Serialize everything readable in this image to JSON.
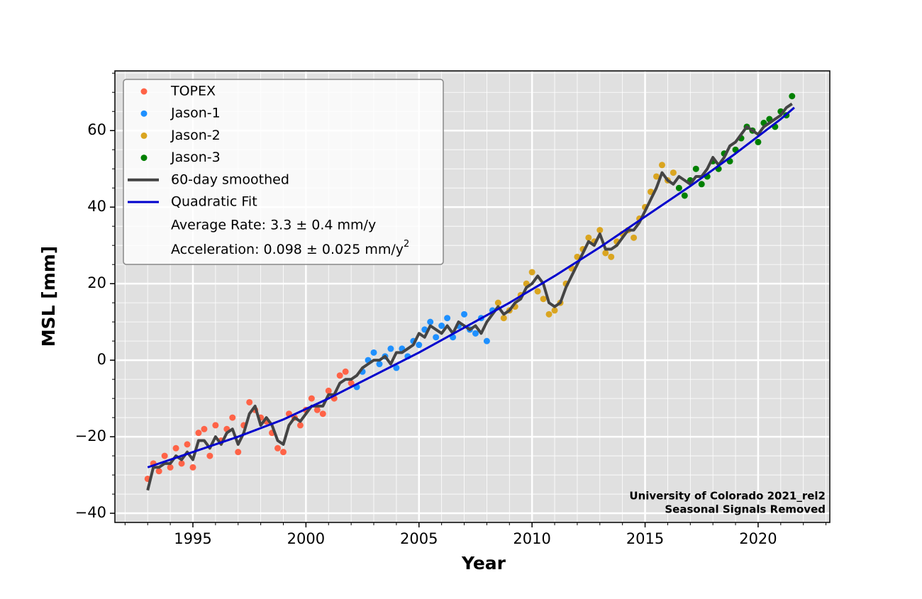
{
  "chart_data": {
    "type": "scatter",
    "xlabel": "Year",
    "ylabel": "MSL [mm]",
    "xlim": [
      1991.55,
      2023.17
    ],
    "ylim": [
      -42.4,
      75.6
    ],
    "xticks": [
      1995,
      2000,
      2005,
      2010,
      2015,
      2020
    ],
    "yticks": [
      {
        "value": -40,
        "label": "−40"
      },
      {
        "value": -20,
        "label": "−20"
      },
      0,
      20,
      40,
      60
    ],
    "xminor": [
      1992,
      1993,
      1994,
      1995,
      1996,
      1997,
      1998,
      1999,
      2000,
      2001,
      2002,
      2003,
      2004,
      2005,
      2006,
      2007,
      2008,
      2009,
      2010,
      2011,
      2012,
      2013,
      2014,
      2015,
      2016,
      2017,
      2018,
      2019,
      2020,
      2021,
      2022,
      2023
    ],
    "yminor": [
      -40,
      -35,
      -30,
      -25,
      -20,
      -15,
      -10,
      -5,
      0,
      5,
      10,
      15,
      20,
      25,
      30,
      35,
      40,
      45,
      50,
      55,
      60,
      65,
      70,
      75
    ],
    "grid": true,
    "legend": "upper left",
    "rate_note": "Average Rate: 3.3 ± 0.4 mm/y",
    "acceleration_note": {
      "text": "Acceleration: 0.098 ± 0.025 mm/y",
      "superscript": "2"
    },
    "credits": [
      "University of Colorado 2021_rel2",
      "Seasonal Signals Removed"
    ],
    "series": [
      {
        "name": "TOPEX",
        "type": "scatter",
        "color": "#ff6347",
        "x": [
          1993.0,
          1993.25,
          1993.5,
          1993.75,
          1994.0,
          1994.25,
          1994.5,
          1994.75,
          1995.0,
          1995.25,
          1995.5,
          1995.75,
          1996.0,
          1996.25,
          1996.5,
          1996.75,
          1997.0,
          1997.25,
          1997.5,
          1997.75,
          1998.0,
          1998.25,
          1998.5,
          1998.75,
          1999.0,
          1999.25,
          1999.5,
          1999.75,
          2000.0,
          2000.25,
          2000.5,
          2000.75,
          2001.0,
          2001.25,
          2001.5,
          2001.75,
          2002.0
        ],
        "values": [
          -31,
          -27,
          -29,
          -25,
          -28,
          -23,
          -27,
          -22,
          -28,
          -19,
          -18,
          -25,
          -17,
          -21,
          -18,
          -15,
          -24,
          -17,
          -11,
          -13,
          -15,
          -16,
          -19,
          -23,
          -24,
          -14,
          -15,
          -17,
          -13,
          -10,
          -13,
          -14,
          -8,
          -10,
          -4,
          -3,
          -6
        ]
      },
      {
        "name": "Jason-1",
        "type": "scatter",
        "color": "#1e90ff",
        "x": [
          2002.25,
          2002.5,
          2002.75,
          2003.0,
          2003.25,
          2003.5,
          2003.75,
          2004.0,
          2004.25,
          2004.5,
          2004.75,
          2005.0,
          2005.25,
          2005.5,
          2005.75,
          2006.0,
          2006.25,
          2006.5,
          2006.75,
          2007.0,
          2007.25,
          2007.5,
          2007.75,
          2008.0,
          2008.25
        ],
        "values": [
          -7,
          -3,
          0,
          2,
          -1,
          1,
          3,
          -2,
          3,
          1,
          5,
          4,
          8,
          10,
          6,
          9,
          11,
          6,
          9,
          12,
          8,
          7,
          11,
          5,
          13
        ]
      },
      {
        "name": "Jason-2",
        "type": "scatter",
        "color": "#daa520",
        "x": [
          2008.5,
          2008.75,
          2009.0,
          2009.25,
          2009.5,
          2009.75,
          2010.0,
          2010.25,
          2010.5,
          2010.75,
          2011.0,
          2011.25,
          2011.5,
          2011.75,
          2012.0,
          2012.25,
          2012.5,
          2012.75,
          2013.0,
          2013.25,
          2013.5,
          2013.75,
          2014.0,
          2014.25,
          2014.5,
          2014.75,
          2015.0,
          2015.25,
          2015.5,
          2015.75,
          2016.0,
          2016.25
        ],
        "values": [
          15,
          11,
          13,
          14,
          17,
          20,
          23,
          18,
          16,
          12,
          13,
          15,
          20,
          24,
          27,
          29,
          32,
          31,
          34,
          28,
          27,
          31,
          33,
          34,
          32,
          37,
          40,
          44,
          48,
          51,
          47,
          49
        ]
      },
      {
        "name": "Jason-3",
        "type": "scatter",
        "color": "#008000",
        "x": [
          2016.5,
          2016.75,
          2017.0,
          2017.25,
          2017.5,
          2017.75,
          2018.0,
          2018.25,
          2018.5,
          2018.75,
          2019.0,
          2019.25,
          2019.5,
          2019.75,
          2020.0,
          2020.25,
          2020.5,
          2020.75,
          2021.0,
          2021.25,
          2021.5
        ],
        "values": [
          45,
          43,
          47,
          50,
          46,
          48,
          52,
          50,
          54,
          52,
          55,
          58,
          61,
          60,
          57,
          62,
          63,
          61,
          65,
          64,
          69
        ]
      },
      {
        "name": "60-day smoothed",
        "type": "line",
        "color": "#444444",
        "x": [
          1993.0,
          1993.25,
          1993.5,
          1993.75,
          1994.0,
          1994.25,
          1994.5,
          1994.75,
          1995.0,
          1995.25,
          1995.5,
          1995.75,
          1996.0,
          1996.25,
          1996.5,
          1996.75,
          1997.0,
          1997.25,
          1997.5,
          1997.75,
          1998.0,
          1998.25,
          1998.5,
          1998.75,
          1999.0,
          1999.25,
          1999.5,
          1999.75,
          2000.0,
          2000.25,
          2000.5,
          2000.75,
          2001.0,
          2001.25,
          2001.5,
          2001.75,
          2002.0,
          2002.25,
          2002.5,
          2002.75,
          2003.0,
          2003.25,
          2003.5,
          2003.75,
          2004.0,
          2004.25,
          2004.5,
          2004.75,
          2005.0,
          2005.25,
          2005.5,
          2005.75,
          2006.0,
          2006.25,
          2006.5,
          2006.75,
          2007.0,
          2007.25,
          2007.5,
          2007.75,
          2008.0,
          2008.25,
          2008.5,
          2008.75,
          2009.0,
          2009.25,
          2009.5,
          2009.75,
          2010.0,
          2010.25,
          2010.5,
          2010.75,
          2011.0,
          2011.25,
          2011.5,
          2011.75,
          2012.0,
          2012.25,
          2012.5,
          2012.75,
          2013.0,
          2013.25,
          2013.5,
          2013.75,
          2014.0,
          2014.25,
          2014.5,
          2014.75,
          2015.0,
          2015.25,
          2015.5,
          2015.75,
          2016.0,
          2016.25,
          2016.5,
          2016.75,
          2017.0,
          2017.25,
          2017.5,
          2017.75,
          2018.0,
          2018.25,
          2018.5,
          2018.75,
          2019.0,
          2019.25,
          2019.5,
          2019.75,
          2020.0,
          2020.25,
          2020.5,
          2020.75,
          2021.0,
          2021.25,
          2021.5
        ],
        "values": [
          -34,
          -28,
          -28,
          -27,
          -27,
          -25,
          -26,
          -24,
          -26,
          -21,
          -21,
          -23,
          -20,
          -22,
          -19,
          -18,
          -22,
          -19,
          -14,
          -12,
          -17,
          -15,
          -17,
          -21,
          -22,
          -17,
          -15,
          -16,
          -14,
          -12,
          -12,
          -12,
          -9,
          -9,
          -6,
          -5,
          -5,
          -4,
          -2,
          -1,
          0,
          0,
          1,
          -1,
          2,
          2,
          3,
          4,
          7,
          6,
          9,
          8,
          7,
          9,
          7,
          10,
          9,
          8,
          9,
          7,
          10,
          12,
          14,
          12,
          13,
          15,
          16,
          19,
          20,
          22,
          20,
          15,
          14,
          15,
          19,
          22,
          25,
          28,
          31,
          30,
          33,
          29,
          29,
          30,
          32,
          34,
          34,
          36,
          39,
          42,
          45,
          49,
          47,
          46,
          48,
          47,
          46,
          48,
          48,
          50,
          53,
          51,
          53,
          56,
          57,
          59,
          61,
          60,
          59,
          61,
          62,
          63,
          64,
          66,
          67
        ]
      },
      {
        "name": "Quadratic Fit",
        "type": "line",
        "color": "#0000cd",
        "x": [
          1993,
          1995,
          1997,
          1999,
          2001,
          2003,
          2005,
          2007,
          2009,
          2011,
          2013,
          2015,
          2017,
          2019,
          2021,
          2021.6
        ],
        "values": [
          -28,
          -24,
          -20,
          -15.5,
          -10,
          -4,
          2,
          8.5,
          15,
          22,
          29.5,
          37.5,
          45.5,
          54,
          63,
          66
        ]
      }
    ]
  }
}
